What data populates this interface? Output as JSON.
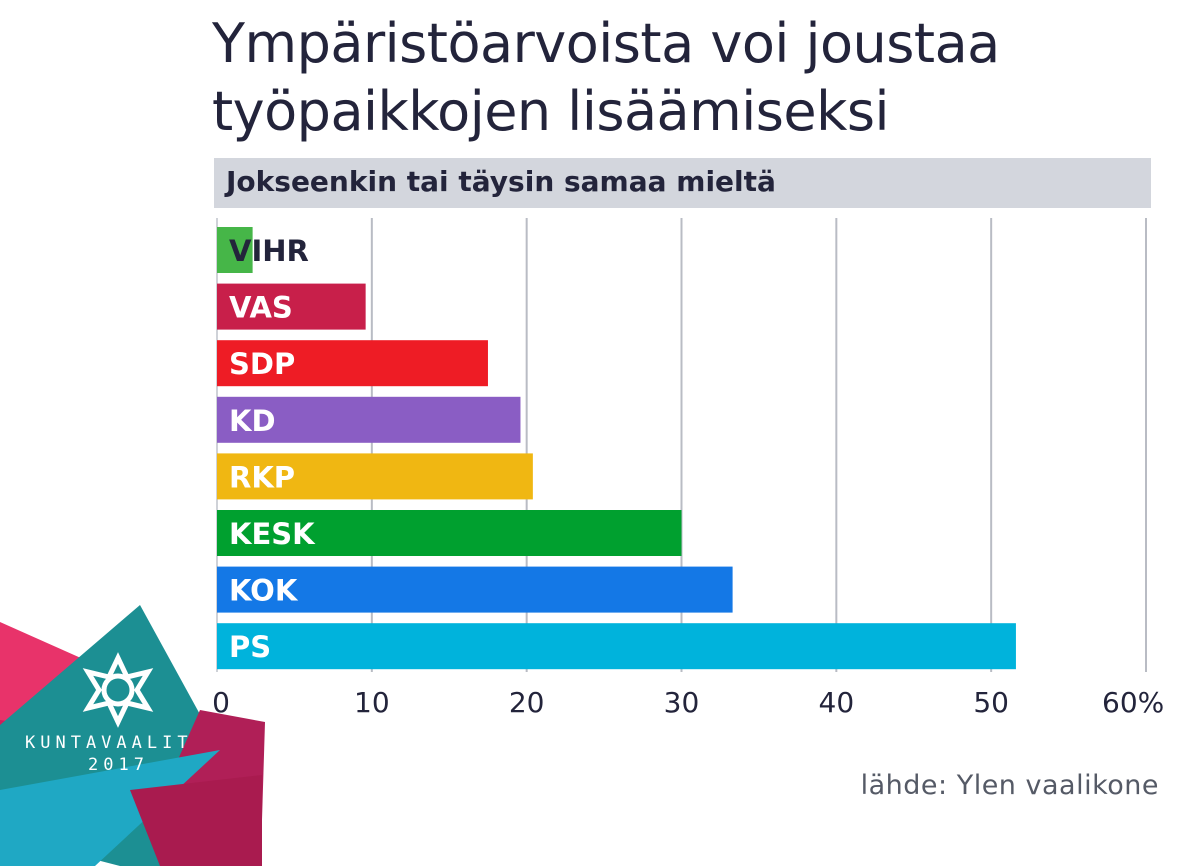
{
  "title": "Ympäristöarvoista voi joustaa\ntyöpaikkojen lisäämiseksi",
  "source": "lähde: Ylen vaalikone",
  "logo": {
    "line1": "KUNTAVAALIT",
    "line2": "2017",
    "icon": "kuntavaalit-star-logo"
  },
  "chart_data": {
    "type": "bar",
    "orientation": "horizontal",
    "subtitle": "Jokseenkin tai täysin samaa mieltä",
    "categories": [
      "VIHR",
      "VAS",
      "SDP",
      "KD",
      "RKP",
      "KESK",
      "KOK",
      "PS"
    ],
    "values": [
      2.3,
      9.6,
      17.5,
      19.6,
      20.4,
      30,
      33.3,
      51.6
    ],
    "colors": [
      "#46b648",
      "#c81f4a",
      "#ee1c25",
      "#8a5dc4",
      "#f0b712",
      "#00a02f",
      "#1478e6",
      "#00b3dc"
    ],
    "xlim": [
      0,
      60
    ],
    "ticks": [
      0,
      10,
      20,
      30,
      40,
      50,
      60
    ],
    "tick_labels": [
      "0",
      "10",
      "20",
      "30",
      "40",
      "50",
      "60%"
    ],
    "grid": true,
    "legend": "none"
  }
}
